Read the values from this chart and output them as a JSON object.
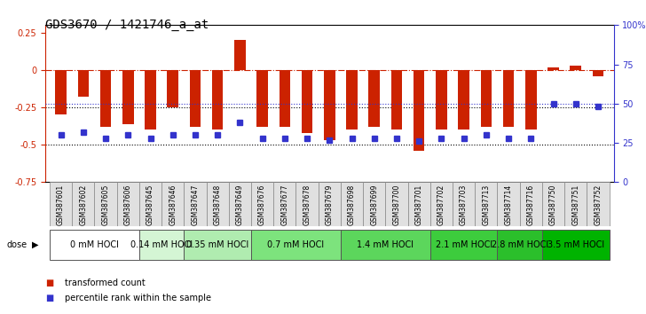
{
  "title": "GDS3670 / 1421746_a_at",
  "samples": [
    "GSM387601",
    "GSM387602",
    "GSM387605",
    "GSM387606",
    "GSM387645",
    "GSM387646",
    "GSM387647",
    "GSM387648",
    "GSM387649",
    "GSM387676",
    "GSM387677",
    "GSM387678",
    "GSM387679",
    "GSM387698",
    "GSM387699",
    "GSM387700",
    "GSM387701",
    "GSM387702",
    "GSM387703",
    "GSM387713",
    "GSM387714",
    "GSM387716",
    "GSM387750",
    "GSM387751",
    "GSM387752"
  ],
  "red_values": [
    -0.3,
    -0.18,
    -0.38,
    -0.36,
    -0.4,
    -0.25,
    -0.38,
    -0.4,
    0.2,
    -0.38,
    -0.38,
    -0.42,
    -0.47,
    -0.4,
    -0.38,
    -0.4,
    -0.54,
    -0.4,
    -0.4,
    -0.38,
    -0.38,
    -0.4,
    0.02,
    0.03,
    -0.04
  ],
  "blue_values_pct": [
    30,
    32,
    28,
    30,
    28,
    30,
    30,
    30,
    38,
    28,
    28,
    28,
    27,
    28,
    28,
    28,
    26,
    28,
    28,
    30,
    28,
    28,
    50,
    50,
    48
  ],
  "dose_groups": [
    {
      "label": "0 mM HOCl",
      "start": 0,
      "end": 3,
      "color": "#ffffff"
    },
    {
      "label": "0.14 mM HOCl",
      "start": 4,
      "end": 5,
      "color": "#ccffcc"
    },
    {
      "label": "0.35 mM HOCl",
      "start": 6,
      "end": 8,
      "color": "#99ff99"
    },
    {
      "label": "0.7 mM HOCl",
      "start": 9,
      "end": 12,
      "color": "#66ff66"
    },
    {
      "label": "1.4 mM HOCl",
      "start": 13,
      "end": 16,
      "color": "#55ee55"
    },
    {
      "label": "2.1 mM HOCl",
      "start": 17,
      "end": 19,
      "color": "#44dd44"
    },
    {
      "label": "2.8 mM HOCl",
      "start": 20,
      "end": 21,
      "color": "#33cc33"
    },
    {
      "label": "3.5 mM HOCl",
      "start": 22,
      "end": 24,
      "color": "#22bb22"
    }
  ],
  "ylim_left": [
    -0.75,
    0.3
  ],
  "ylim_right": [
    0,
    100
  ],
  "red_color": "#cc2200",
  "blue_color": "#3333cc",
  "grid_color": "#000000",
  "zero_line_color": "#cc2200",
  "bg_color": "#ffffff"
}
